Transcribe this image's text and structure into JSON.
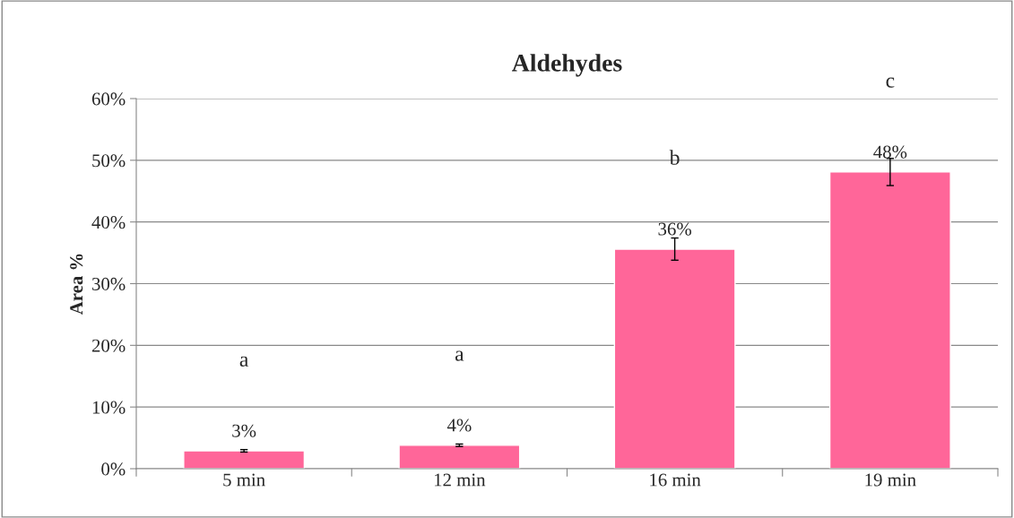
{
  "chart_data": {
    "type": "bar",
    "title": "Aldehydes",
    "ylabel": "Area %",
    "categories": [
      "5 min",
      "12 min",
      "16 min",
      "19 min"
    ],
    "values": [
      2.9,
      3.8,
      35.6,
      48.1
    ],
    "errors": [
      0.2,
      0.2,
      1.8,
      2.2
    ],
    "value_labels": [
      "3%",
      "4%",
      "36%",
      "48%"
    ],
    "color": "#ff6699",
    "ylim": [
      0,
      60
    ],
    "yticks": [
      {
        "value": 0,
        "label": "0%"
      },
      {
        "value": 10,
        "label": "10%"
      },
      {
        "value": 20,
        "label": "20%"
      },
      {
        "value": 30,
        "label": "30%"
      },
      {
        "value": 40,
        "label": "40%"
      },
      {
        "value": 50,
        "label": "50%"
      },
      {
        "value": 60,
        "label": "60%"
      }
    ],
    "grid": "y",
    "annotations": [
      "a",
      "a",
      "b",
      "c"
    ]
  }
}
